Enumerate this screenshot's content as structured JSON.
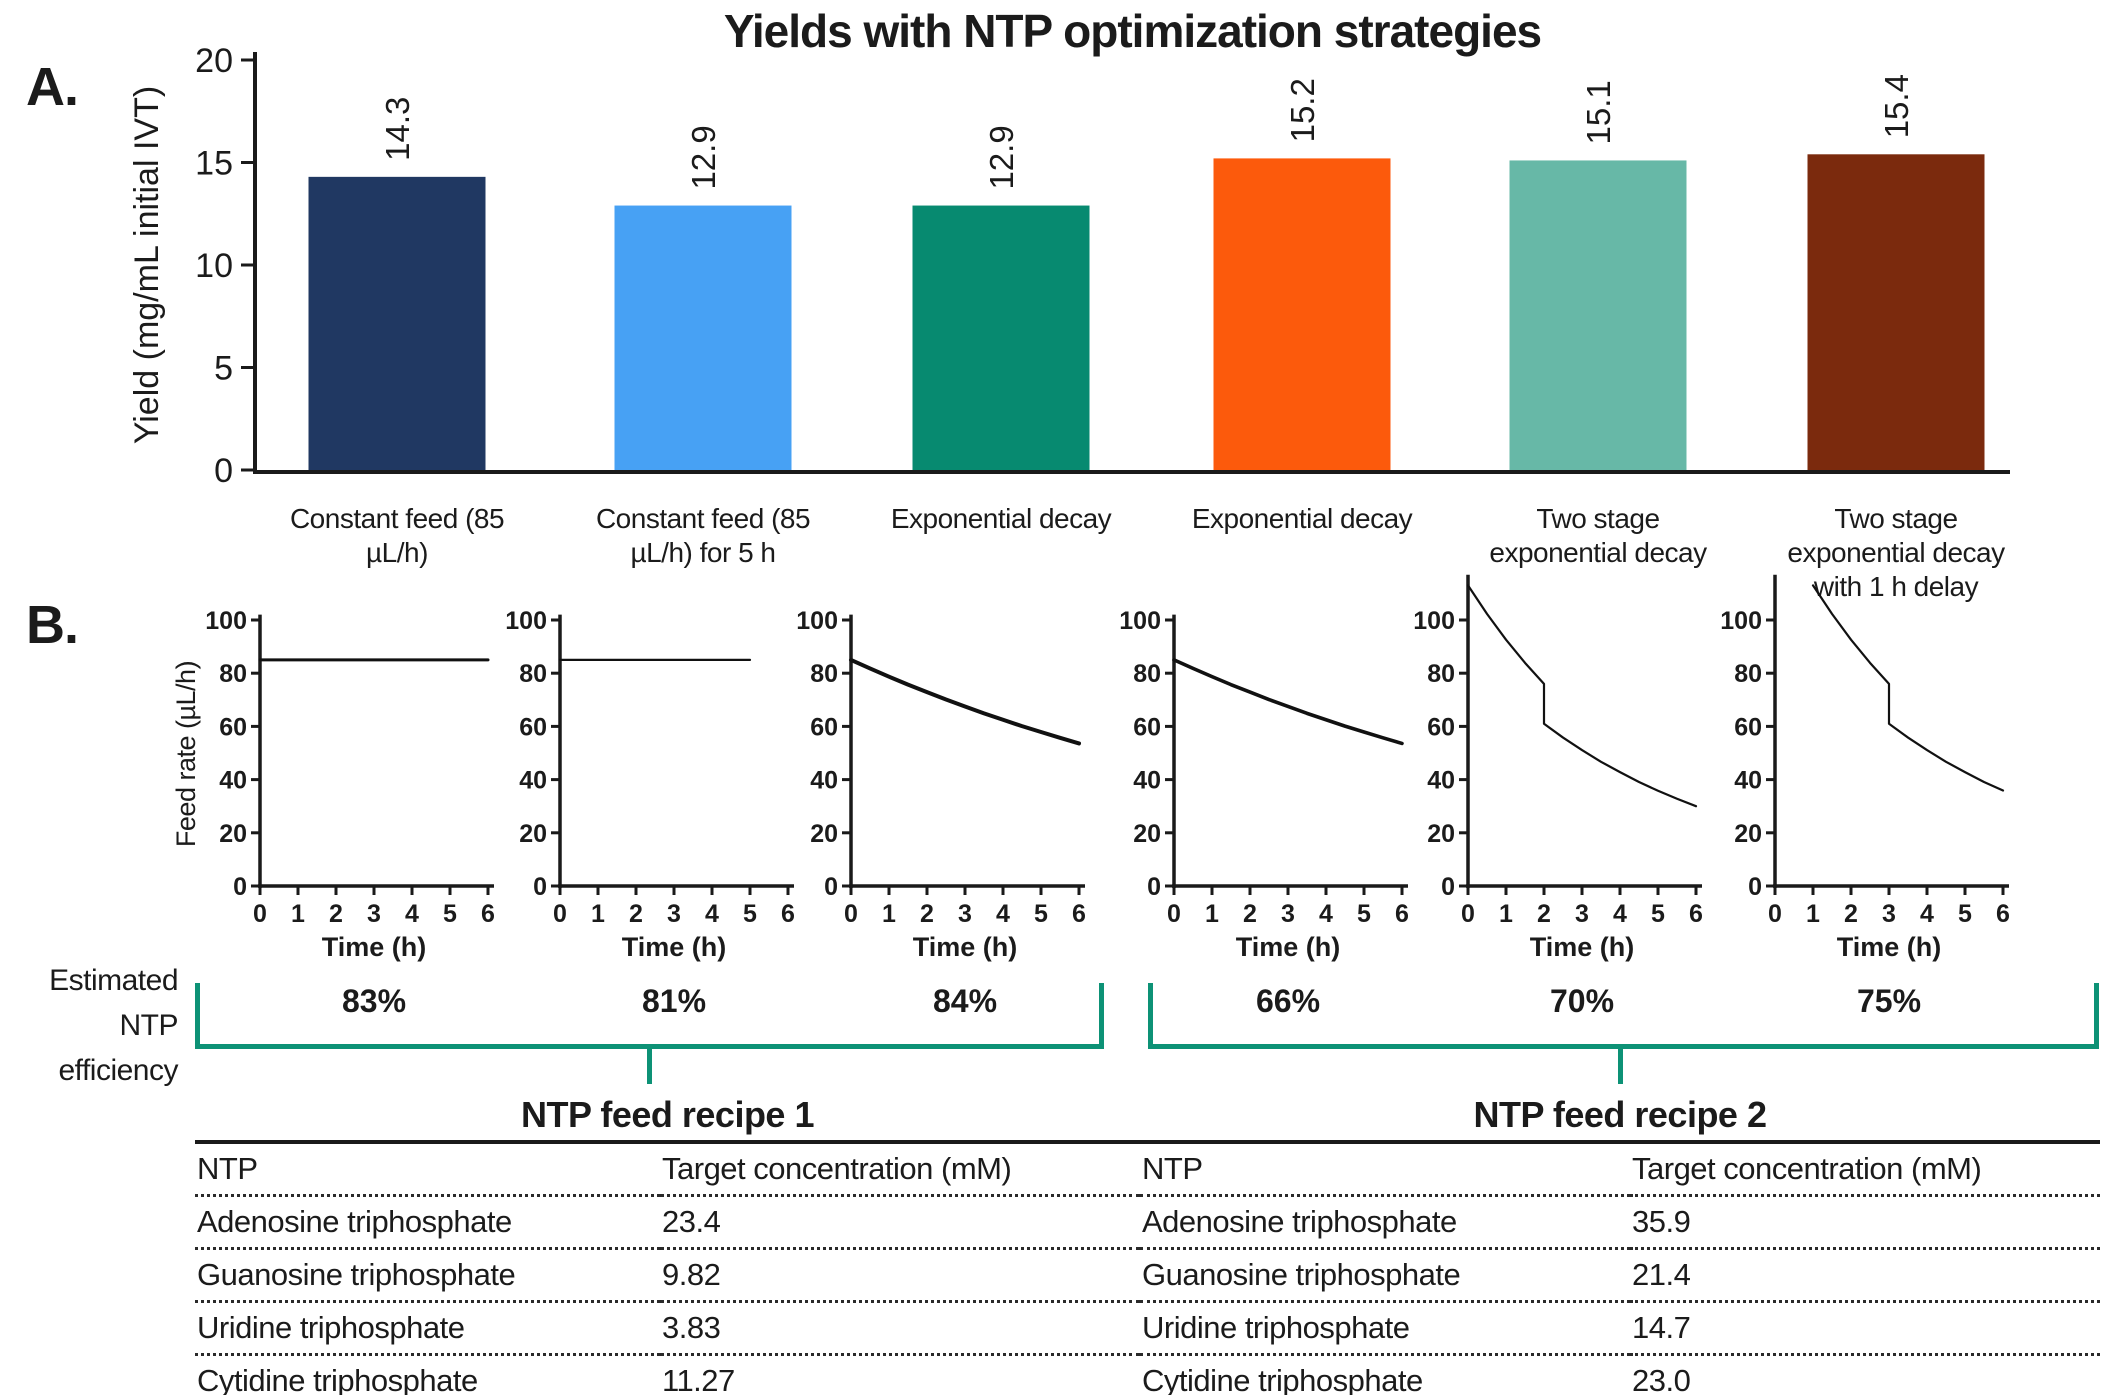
{
  "panel_a": {
    "label": "A."
  },
  "panel_b": {
    "label": "B.",
    "efficiency_label": "Estimated NTP efficiency"
  },
  "colors": {
    "bracket": "#0d9276",
    "axis": "#1a1a1a",
    "bars": [
      "#203862",
      "#47a1f4",
      "#078a70",
      "#fc5a0c",
      "#67b8a7",
      "#7b2a0d"
    ]
  },
  "tables": [
    {
      "title": "NTP feed recipe 1",
      "columns": [
        "NTP",
        "Target concentration (mM)"
      ],
      "rows": [
        [
          "Adenosine triphosphate",
          "23.4"
        ],
        [
          "Guanosine triphosphate",
          "9.82"
        ],
        [
          "Uridine triphosphate",
          "3.83"
        ],
        [
          "Cytidine triphosphate",
          "11.27"
        ]
      ]
    },
    {
      "title": "NTP feed recipe 2",
      "columns": [
        "NTP",
        "Target concentration (mM)"
      ],
      "rows": [
        [
          "Adenosine triphosphate",
          "35.9"
        ],
        [
          "Guanosine triphosphate",
          "21.4"
        ],
        [
          "Uridine triphosphate",
          "14.7"
        ],
        [
          "Cytidine triphosphate",
          "23.0"
        ]
      ]
    }
  ],
  "chart_data": [
    {
      "type": "bar",
      "title": "Yields with NTP optimization strategies",
      "ylabel": "Yield (mg/mL initial IVT)",
      "ylim": [
        0,
        20
      ],
      "yticks": [
        0,
        5,
        10,
        15,
        20
      ],
      "categories": [
        "Constant feed (85 µL/h)",
        "Constant feed (85 µL/h) for 5 h",
        "Exponential decay",
        "Exponential decay",
        "Two stage exponential decay",
        "Two stage exponential decay with 1 h delay"
      ],
      "values": [
        14.3,
        12.9,
        12.9,
        15.2,
        15.1,
        15.4
      ],
      "value_labels": [
        "14.3",
        "12.9",
        "12.9",
        "15.2",
        "15.1",
        "15.4"
      ],
      "bar_colors": [
        "#203862",
        "#47a1f4",
        "#078a70",
        "#fc5a0c",
        "#67b8a7",
        "#7b2a0d"
      ]
    },
    {
      "type": "line",
      "name": "Constant feed (85 µL/h)",
      "efficiency": "83%",
      "xlabel": "Time (h)",
      "ylabel": "Feed rate (µL/h)",
      "xticks": [
        0,
        1,
        2,
        3,
        4,
        5,
        6
      ],
      "yticks": [
        0,
        20,
        40,
        60,
        80,
        100
      ],
      "ylim": [
        0,
        100
      ],
      "points": [
        [
          0,
          85
        ],
        [
          6,
          85
        ]
      ]
    },
    {
      "type": "line",
      "name": "Constant feed (85 µL/h) for 5 h",
      "efficiency": "81%",
      "xlabel": "Time (h)",
      "ylabel": "Feed rate (µL/h)",
      "xticks": [
        0,
        1,
        2,
        3,
        4,
        5,
        6
      ],
      "yticks": [
        0,
        20,
        40,
        60,
        80,
        100
      ],
      "ylim": [
        0,
        100
      ],
      "points": [
        [
          0,
          85
        ],
        [
          5,
          85
        ]
      ]
    },
    {
      "type": "line",
      "name": "Exponential decay",
      "efficiency": "84%",
      "xlabel": "Time (h)",
      "ylabel": "Feed rate (µL/h)",
      "xticks": [
        0,
        1,
        2,
        3,
        4,
        5,
        6
      ],
      "yticks": [
        0,
        20,
        40,
        60,
        80,
        100
      ],
      "ylim": [
        0,
        100
      ],
      "points": [
        [
          0,
          85
        ],
        [
          0.5,
          81.8
        ],
        [
          1,
          78.7
        ],
        [
          1.5,
          75.7
        ],
        [
          2,
          72.9
        ],
        [
          2.5,
          70.1
        ],
        [
          3,
          67.5
        ],
        [
          3.5,
          64.9
        ],
        [
          4,
          62.5
        ],
        [
          4.5,
          60.1
        ],
        [
          5,
          57.9
        ],
        [
          5.5,
          55.7
        ],
        [
          6,
          53.6
        ]
      ]
    },
    {
      "type": "line",
      "name": "Exponential decay",
      "efficiency": "66%",
      "xlabel": "Time (h)",
      "ylabel": "Feed rate (µL/h)",
      "xticks": [
        0,
        1,
        2,
        3,
        4,
        5,
        6
      ],
      "yticks": [
        0,
        20,
        40,
        60,
        80,
        100
      ],
      "ylim": [
        0,
        100
      ],
      "points": [
        [
          0,
          85
        ],
        [
          0.5,
          81.8
        ],
        [
          1,
          78.7
        ],
        [
          1.5,
          75.7
        ],
        [
          2,
          72.9
        ],
        [
          2.5,
          70.1
        ],
        [
          3,
          67.5
        ],
        [
          3.5,
          64.9
        ],
        [
          4,
          62.5
        ],
        [
          4.5,
          60.1
        ],
        [
          5,
          57.9
        ],
        [
          5.5,
          55.7
        ],
        [
          6,
          53.6
        ]
      ]
    },
    {
      "type": "line",
      "name": "Two stage exponential decay",
      "efficiency": "70%",
      "xlabel": "Time (h)",
      "ylabel": "Feed rate (µL/h)",
      "xticks": [
        0,
        1,
        2,
        3,
        4,
        5,
        6
      ],
      "yticks": [
        0,
        20,
        40,
        60,
        80,
        100
      ],
      "ylim": [
        0,
        115
      ],
      "points": [
        [
          0,
          113
        ],
        [
          0.5,
          102.3
        ],
        [
          1,
          92.6
        ],
        [
          1.5,
          83.9
        ],
        [
          2,
          76
        ],
        [
          2,
          61
        ],
        [
          2.5,
          55.8
        ],
        [
          3,
          51.1
        ],
        [
          3.5,
          46.7
        ],
        [
          4,
          42.8
        ],
        [
          4.5,
          39.1
        ],
        [
          5,
          35.8
        ],
        [
          5.5,
          32.8
        ],
        [
          6,
          30
        ]
      ]
    },
    {
      "type": "line",
      "name": "Two stage exponential decay with 1 h delay",
      "efficiency": "75%",
      "xlabel": "Time (h)",
      "ylabel": "Feed rate (µL/h)",
      "xticks": [
        0,
        1,
        2,
        3,
        4,
        5,
        6
      ],
      "yticks": [
        0,
        20,
        40,
        60,
        80,
        100
      ],
      "ylim": [
        0,
        115
      ],
      "points": [
        [
          1,
          113
        ],
        [
          1.5,
          102.3
        ],
        [
          2,
          92.6
        ],
        [
          2.5,
          83.9
        ],
        [
          3,
          76
        ],
        [
          3,
          61
        ],
        [
          3.5,
          55.8
        ],
        [
          4,
          51.1
        ],
        [
          4.5,
          46.7
        ],
        [
          5,
          42.8
        ],
        [
          5.5,
          39.1
        ],
        [
          6,
          35.9
        ]
      ]
    }
  ]
}
